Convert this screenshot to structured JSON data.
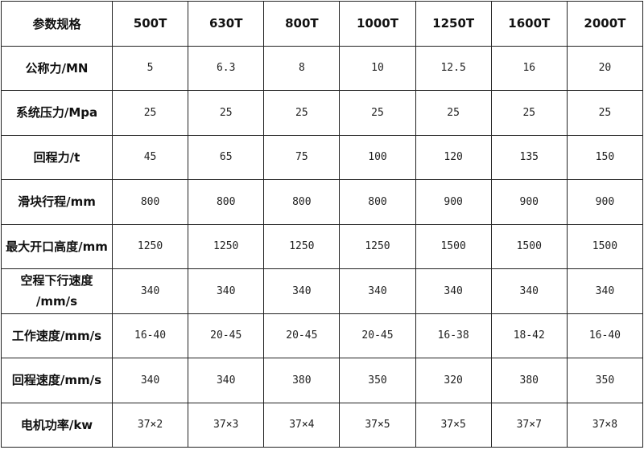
{
  "table": {
    "header": [
      "参数规格",
      "500T",
      "630T",
      "800T",
      "1000T",
      "1250T",
      "1600T",
      "2000T"
    ],
    "rows": [
      {
        "label": "公称力/MN",
        "values": [
          "5",
          "6.3",
          "8",
          "10",
          "12.5",
          "16",
          "20"
        ]
      },
      {
        "label": "系统压力/Mpa",
        "values": [
          "25",
          "25",
          "25",
          "25",
          "25",
          "25",
          "25"
        ]
      },
      {
        "label": "回程力/t",
        "values": [
          "45",
          "65",
          "75",
          "100",
          "120",
          "135",
          "150"
        ]
      },
      {
        "label": "滑块行程/mm",
        "values": [
          "800",
          "800",
          "800",
          "800",
          "900",
          "900",
          "900"
        ]
      },
      {
        "label": "最大开口高度/mm",
        "values": [
          "1250",
          "1250",
          "1250",
          "1250",
          "1500",
          "1500",
          "1500"
        ]
      },
      {
        "label": "空程下行速度/mm/s",
        "values": [
          "340",
          "340",
          "340",
          "340",
          "340",
          "340",
          "340"
        ]
      },
      {
        "label": "工作速度/mm/s",
        "values": [
          "16-40",
          "20-45",
          "20-45",
          "20-45",
          "16-38",
          "18-42",
          "16-40"
        ]
      },
      {
        "label": "回程速度/mm/s",
        "values": [
          "340",
          "340",
          "380",
          "350",
          "320",
          "380",
          "350"
        ]
      },
      {
        "label": "电机功率/kw",
        "values": [
          "37×2",
          "37×3",
          "37×4",
          "37×5",
          "37×5",
          "37×7",
          "37×8"
        ]
      }
    ]
  }
}
